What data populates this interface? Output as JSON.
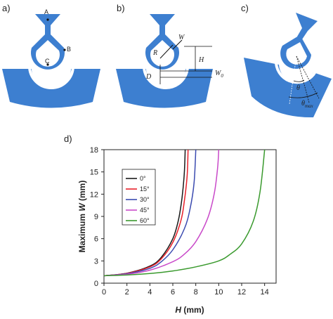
{
  "panels": {
    "a": {
      "label": "a)",
      "points": {
        "A": "A",
        "B": "B",
        "C": "C"
      }
    },
    "b": {
      "label": "b)",
      "dims": {
        "W": "W",
        "R": "R",
        "H": "H",
        "D": "D",
        "W0": "W",
        "W0_sub": "0"
      }
    },
    "c": {
      "label": "c)",
      "angles": {
        "theta": "θ",
        "theta_max": "θ",
        "theta_max_sub": "max"
      }
    },
    "d": {
      "label": "d)"
    }
  },
  "colors": {
    "blue": "#3d7fd0",
    "black": "#1a1a1a",
    "red": "#e8202a",
    "navy": "#3b4bb0",
    "magenta": "#c94ac9",
    "green": "#3a9a2e"
  },
  "chart_data": {
    "type": "line",
    "xlabel_var": "H",
    "xlabel_unit": " (mm)",
    "ylabel_prefix": "Maximum ",
    "ylabel_var": "W",
    "ylabel_unit": " (mm)",
    "xlim": [
      0,
      15
    ],
    "ylim": [
      0,
      18
    ],
    "xticks": [
      0,
      2,
      4,
      6,
      8,
      10,
      12,
      14
    ],
    "yticks": [
      0,
      3,
      6,
      9,
      12,
      15,
      18
    ],
    "grid": false,
    "legend_position": "upper-left",
    "series": [
      {
        "name": "0°",
        "color": "#1a1a1a",
        "x": [
          0,
          2,
          4,
          5,
          6,
          6.5,
          6.8,
          7.0,
          7.08
        ],
        "y": [
          1.0,
          1.35,
          2.3,
          3.5,
          6.0,
          8.6,
          11.5,
          14.8,
          18
        ]
      },
      {
        "name": "15°",
        "color": "#e8202a",
        "x": [
          0,
          2,
          4,
          5,
          6,
          6.7,
          7.0,
          7.25,
          7.33
        ],
        "y": [
          1.0,
          1.33,
          2.2,
          3.3,
          5.5,
          8.4,
          11.0,
          14.5,
          18
        ]
      },
      {
        "name": "30°",
        "color": "#3b4bb0",
        "x": [
          0,
          2,
          4,
          5,
          6,
          7.0,
          7.5,
          7.85,
          8.0
        ],
        "y": [
          1.0,
          1.28,
          2.0,
          2.9,
          4.5,
          7.3,
          10.0,
          13.5,
          18
        ]
      },
      {
        "name": "45°",
        "color": "#c94ac9",
        "x": [
          0,
          2,
          4,
          6,
          7,
          8,
          9,
          9.6,
          9.9,
          10.0
        ],
        "y": [
          1.0,
          1.2,
          1.75,
          2.9,
          3.9,
          5.6,
          8.6,
          12.0,
          15.5,
          18
        ]
      },
      {
        "name": "60°",
        "color": "#3a9a2e",
        "x": [
          0,
          2,
          4,
          6,
          8,
          10,
          11,
          12,
          13,
          13.6,
          14.0
        ],
        "y": [
          1.0,
          1.1,
          1.3,
          1.65,
          2.2,
          3.0,
          3.9,
          5.3,
          8.3,
          12.3,
          18
        ]
      }
    ]
  }
}
